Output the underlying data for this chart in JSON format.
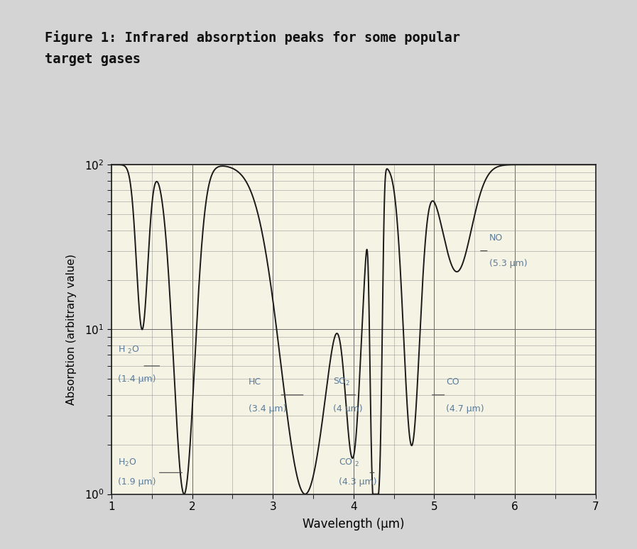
{
  "xlabel": "Wavelength (μm)",
  "ylabel": "Absorption (arbitrary value)",
  "bg_color": "#f5f4e4",
  "fig_bg_color": "#d4d4d4",
  "line_color": "#1a1a1a",
  "label_color": "#5a7a9a",
  "xlim": [
    1,
    7
  ],
  "ylim_log": [
    1,
    100
  ],
  "title_line1": "Figure 1: Infrared absorption peaks for some popular",
  "title_line2": "target gases"
}
